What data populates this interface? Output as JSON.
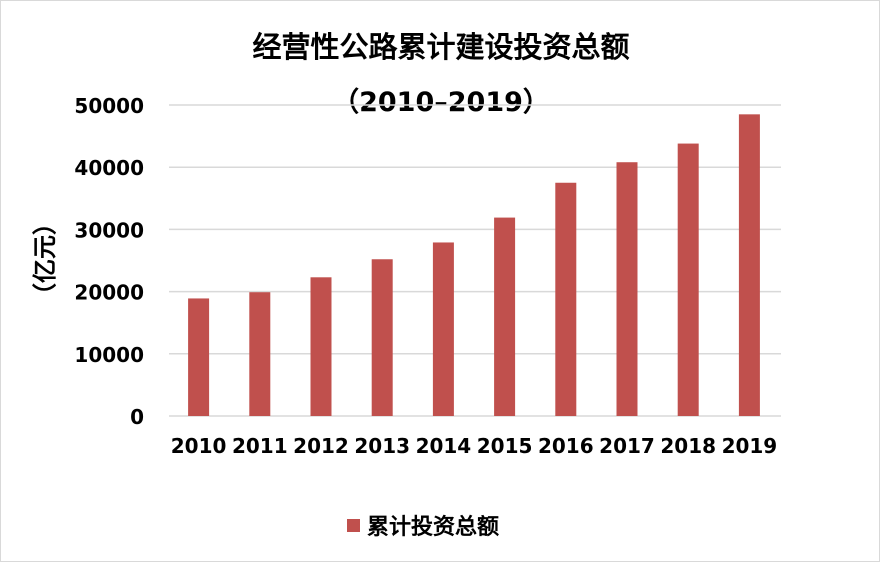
{
  "chart_data": {
    "type": "bar",
    "title": "经营性公路累计建设投资总额",
    "subtitle": "（2010–2019）",
    "ylabel": "（亿元）",
    "xlabel": "",
    "categories": [
      "2010",
      "2011",
      "2012",
      "2013",
      "2014",
      "2015",
      "2016",
      "2017",
      "2018",
      "2019"
    ],
    "series": [
      {
        "name": "累计投资总额",
        "values": [
          18900,
          19900,
          22300,
          25200,
          27900,
          31900,
          37500,
          40800,
          43800,
          48500
        ],
        "color": "#c0504d"
      }
    ],
    "ylim": [
      0,
      50000
    ],
    "yticks": [
      "0",
      "10000",
      "20000",
      "30000",
      "40000",
      "50000"
    ],
    "grid": true,
    "legend_position": "bottom"
  }
}
